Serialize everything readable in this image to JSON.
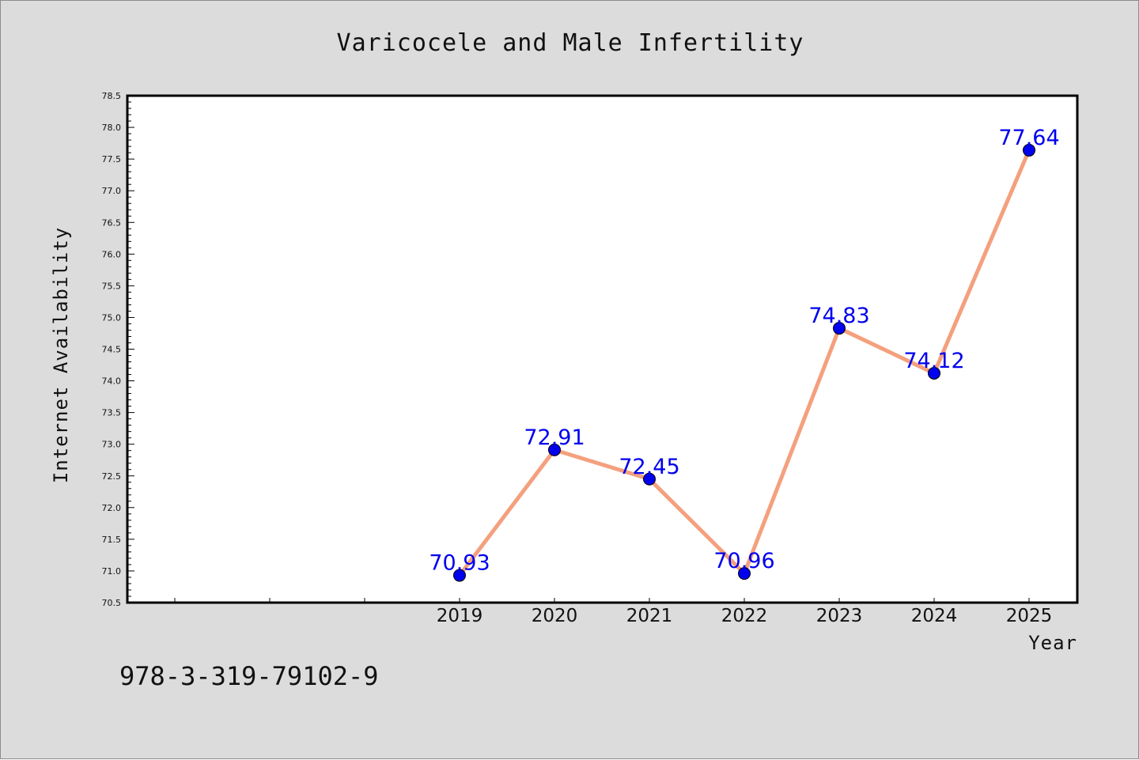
{
  "chart_data": {
    "type": "line",
    "title": "Varicocele and Male Infertility",
    "xlabel": "Year",
    "ylabel": "Internet Availability",
    "categories": [
      "2019",
      "2020",
      "2021",
      "2022",
      "2023",
      "2024",
      "2025"
    ],
    "series": [
      {
        "values": [
          70.93,
          72.91,
          72.45,
          70.96,
          74.83,
          74.12,
          77.64
        ]
      }
    ],
    "data_labels": [
      "70.93",
      "72.91",
      "72.45",
      "70.96",
      "74.83",
      "74.12",
      "77.64"
    ],
    "yticks": [
      "70.5",
      "71.0",
      "71.5",
      "72.0",
      "72.5",
      "73.0",
      "73.5",
      "74.0",
      "74.5",
      "75.0",
      "75.5",
      "76.0",
      "76.5",
      "77.0",
      "77.5",
      "78.0",
      "78.5"
    ],
    "ylim": [
      70.5,
      78.5
    ],
    "grid": false,
    "colors": {
      "line": "#f4a07e",
      "marker": "#0000ee",
      "label": "#0000ee",
      "background": "#dcdcdc",
      "plot": "#ffffff"
    }
  },
  "footer_text": "978-3-319-79102-9"
}
